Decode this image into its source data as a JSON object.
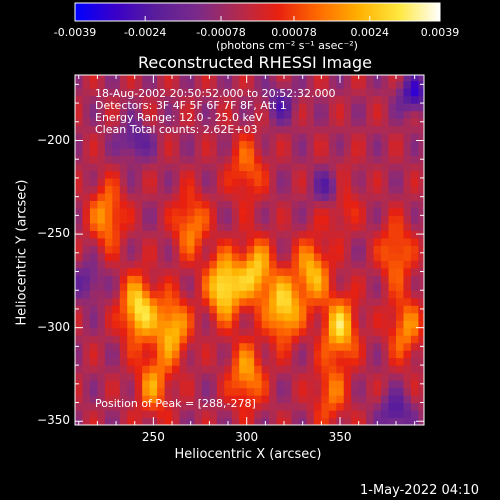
{
  "colorbar": {
    "tick_labels": [
      "-0.0039",
      "-0.0024",
      "-0.00078",
      "0.00078",
      "0.0024",
      "0.0039"
    ],
    "tick_values": [
      -0.0039,
      -0.0024,
      -0.00078,
      0.00078,
      0.0024,
      0.0039
    ],
    "units": "(photons cm⁻² s⁻¹ asec⁻²)",
    "colormap": [
      "#0000ff",
      "#3a00c8",
      "#5a1e9a",
      "#7a2a8a",
      "#b02a50",
      "#e82010",
      "#ff6a00",
      "#ffb000",
      "#ffe840",
      "#ffffff"
    ]
  },
  "title": "Reconstructed RHESSI Image",
  "info_lines": [
    "18-Aug-2002 20:50:52.000 to 20:52:32.000",
    "Detectors: 3F 4F 5F 6F 7F 8F, Att 1",
    "Energy Range: 12.0 - 25.0 keV",
    "Clean     Total counts: 2.62E+03"
  ],
  "peak_text": "Position of Peak = [288,-278]",
  "footer_date": "1-May-2022 04:10",
  "chart_data": {
    "type": "heatmap",
    "title": "Reconstructed RHESSI Image",
    "xlabel": "Heliocentric X (arcsec)",
    "ylabel": "Heliocentric Y (arcsec)",
    "xlim": [
      208,
      395
    ],
    "ylim": [
      -352,
      -165
    ],
    "x_ticks": [
      250,
      300,
      350
    ],
    "x_tick_labels": [
      "250",
      "300",
      "350"
    ],
    "y_ticks": [
      -200,
      -250,
      -300,
      -350
    ],
    "y_tick_labels": [
      "−200",
      "−250",
      "−300",
      "−350"
    ],
    "value_range": [
      -0.0039,
      0.0039
    ],
    "peak": {
      "x": 288,
      "y": -278
    },
    "bright_sources": [
      {
        "x": 242,
        "y": -290,
        "value": 0.0036
      },
      {
        "x": 288,
        "y": -278,
        "value": 0.0039
      },
      {
        "x": 320,
        "y": -290,
        "value": 0.0034
      },
      {
        "x": 350,
        "y": -300,
        "value": 0.0032
      },
      {
        "x": 260,
        "y": -300,
        "value": 0.003
      },
      {
        "x": 305,
        "y": -270,
        "value": 0.0031
      },
      {
        "x": 335,
        "y": -270,
        "value": 0.0028
      },
      {
        "x": 225,
        "y": -240,
        "value": 0.0024
      },
      {
        "x": 270,
        "y": -245,
        "value": 0.0022
      },
      {
        "x": 300,
        "y": -215,
        "value": 0.0018
      },
      {
        "x": 350,
        "y": -230,
        "value": 0.0016
      },
      {
        "x": 380,
        "y": -260,
        "value": 0.002
      },
      {
        "x": 250,
        "y": -330,
        "value": 0.0022
      },
      {
        "x": 300,
        "y": -325,
        "value": 0.0025
      },
      {
        "x": 345,
        "y": -335,
        "value": 0.0018
      },
      {
        "x": 385,
        "y": -300,
        "value": 0.0022
      }
    ],
    "dark_sources": [
      {
        "x": 390,
        "y": -175,
        "value": -0.0025
      },
      {
        "x": 345,
        "y": -225,
        "value": -0.0024
      },
      {
        "x": 240,
        "y": -200,
        "value": -0.0018
      },
      {
        "x": 318,
        "y": -180,
        "value": -0.0016
      },
      {
        "x": 380,
        "y": -345,
        "value": -0.002
      },
      {
        "x": 215,
        "y": -275,
        "value": -0.0015
      }
    ]
  }
}
